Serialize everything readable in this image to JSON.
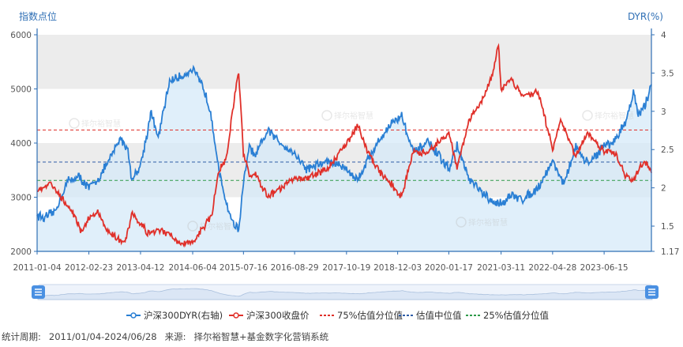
{
  "footer": {
    "period_label": "统计周期:",
    "period_value": "2011/01/04-2024/06/28",
    "source_label": "来源:",
    "source_value": "择尔裕智慧+基金数字化营销系统"
  },
  "watermark_text": "择尔裕智慧",
  "colors": {
    "dyr": "#2a7fd4",
    "close": "#e0302a",
    "p75": "#e0302a",
    "median": "#2f5da8",
    "p25": "#2e9a4a",
    "band_gray": "#ececec",
    "area_fill": "#d6e9f8",
    "axis": "#2f6fb5"
  },
  "chart_data": {
    "type": "line",
    "title": "",
    "y_left": {
      "label": "指数点位",
      "min": 2000,
      "max": 6000,
      "ticks": [
        "2000",
        "3000",
        "4000",
        "5000",
        "6000"
      ]
    },
    "y_right": {
      "label": "DYR(%)",
      "min": 1.17,
      "max": 4,
      "ticks": [
        "1.17",
        "1.5",
        "2",
        "2.5",
        "3",
        "3.5",
        "4"
      ],
      "tick_values": [
        1.17,
        1.5,
        2,
        2.5,
        3,
        3.5,
        4
      ]
    },
    "x_range": [
      "2011-01-04",
      "2024-06-28"
    ],
    "x_ticks": [
      "2011-01-04",
      "2012-02-23",
      "2013-04-12",
      "2014-06-04",
      "2015-07-16",
      "2016-08-29",
      "2017-10-19",
      "2018-12-03",
      "2020-01-17",
      "2021-03-11",
      "2022-04-28",
      "2023-06-15"
    ],
    "legend": [
      "沪深300DYR(右轴)",
      "沪深300收盘价",
      "75%估值分位值",
      "估值中位值",
      "25%估值分位值"
    ],
    "reference_lines": [
      {
        "name": "75%估值分位值",
        "y": 4240
      },
      {
        "name": "估值中位值",
        "y": 3650
      },
      {
        "name": "25%估值分位值",
        "y": 3310
      }
    ],
    "series": [
      {
        "name": "沪深300DYR(右轴)",
        "axis": "right",
        "x": [
          "2011-01-04",
          "2011-03-01",
          "2011-06-01",
          "2011-09-01",
          "2011-12-01",
          "2012-02-23",
          "2012-05-01",
          "2012-08-01",
          "2012-11-01",
          "2013-01-01",
          "2013-02-01",
          "2013-04-12",
          "2013-06-15",
          "2013-07-01",
          "2013-09-01",
          "2013-12-01",
          "2014-03-01",
          "2014-06-04",
          "2014-09-01",
          "2014-11-01",
          "2015-01-01",
          "2015-03-01",
          "2015-04-20",
          "2015-06-08",
          "2015-07-16",
          "2015-09-01",
          "2015-10-15",
          "2016-01-28",
          "2016-05-01",
          "2016-08-29",
          "2016-12-01",
          "2017-03-01",
          "2017-06-01",
          "2017-10-19",
          "2018-01-15",
          "2018-04-01",
          "2018-07-01",
          "2018-10-15",
          "2018-12-03",
          "2019-01-04",
          "2019-04-08",
          "2019-08-01",
          "2020-01-17",
          "2020-03-23",
          "2020-07-01",
          "2020-10-01",
          "2021-01-01",
          "2021-03-11",
          "2021-06-01",
          "2021-09-01",
          "2022-01-01",
          "2022-04-28",
          "2022-08-01",
          "2022-10-31",
          "2023-01-01",
          "2023-03-01",
          "2023-06-15",
          "2023-09-01",
          "2023-12-01",
          "2024-02-05",
          "2024-03-15",
          "2024-05-01",
          "2024-06-28"
        ],
        "values": [
          1.65,
          1.6,
          1.7,
          2.08,
          2.15,
          2.0,
          2.1,
          2.35,
          2.65,
          2.5,
          2.1,
          2.3,
          2.8,
          3.0,
          2.65,
          3.4,
          3.45,
          3.55,
          3.3,
          2.95,
          2.2,
          1.8,
          1.55,
          1.45,
          2.05,
          2.55,
          2.4,
          2.75,
          2.6,
          2.45,
          2.25,
          2.3,
          2.35,
          2.25,
          2.1,
          2.35,
          2.6,
          2.85,
          2.9,
          2.95,
          2.45,
          2.6,
          2.25,
          2.55,
          2.1,
          1.95,
          1.8,
          1.8,
          1.9,
          1.85,
          2.0,
          2.35,
          2.05,
          2.55,
          2.35,
          2.35,
          2.55,
          2.6,
          2.85,
          3.25,
          2.95,
          3.05,
          3.35
        ]
      },
      {
        "name": "沪深300收盘价",
        "axis": "left",
        "x": [
          "2011-01-04",
          "2011-04-18",
          "2011-07-01",
          "2011-09-30",
          "2011-12-30",
          "2012-03-01",
          "2012-05-04",
          "2012-08-01",
          "2012-12-03",
          "2013-02-05",
          "2013-04-12",
          "2013-06-25",
          "2013-09-01",
          "2013-12-01",
          "2014-03-01",
          "2014-06-04",
          "2014-09-01",
          "2014-11-01",
          "2014-12-31",
          "2015-03-01",
          "2015-04-20",
          "2015-06-08",
          "2015-07-16",
          "2015-09-01",
          "2015-10-15",
          "2016-01-28",
          "2016-05-01",
          "2016-08-29",
          "2016-12-01",
          "2017-03-01",
          "2017-06-01",
          "2017-10-19",
          "2018-01-24",
          "2018-03-15",
          "2018-07-01",
          "2018-10-15",
          "2018-12-03",
          "2019-01-04",
          "2019-04-08",
          "2019-08-01",
          "2020-01-17",
          "2020-03-23",
          "2020-07-01",
          "2020-10-01",
          "2021-01-01",
          "2021-02-18",
          "2021-03-11",
          "2021-06-01",
          "2021-09-01",
          "2022-01-01",
          "2022-04-28",
          "2022-07-01",
          "2022-10-31",
          "2023-01-27",
          "2023-06-15",
          "2023-09-01",
          "2023-12-01",
          "2024-02-05",
          "2024-03-15",
          "2024-05-20",
          "2024-06-28"
        ],
        "values": [
          3130,
          3250,
          3050,
          2800,
          2350,
          2650,
          2700,
          2350,
          2150,
          2700,
          2500,
          2300,
          2400,
          2300,
          2150,
          2150,
          2450,
          2650,
          3500,
          3700,
          4600,
          5350,
          3800,
          3400,
          3450,
          3000,
          3150,
          3350,
          3350,
          3450,
          3550,
          4000,
          4350,
          3950,
          3500,
          3250,
          3050,
          3020,
          3850,
          3800,
          4200,
          3550,
          4450,
          4750,
          5250,
          5800,
          5000,
          5150,
          4850,
          4950,
          3900,
          4450,
          3750,
          4200,
          3850,
          3850,
          3400,
          3300,
          3520,
          3650,
          3450
        ]
      }
    ]
  }
}
